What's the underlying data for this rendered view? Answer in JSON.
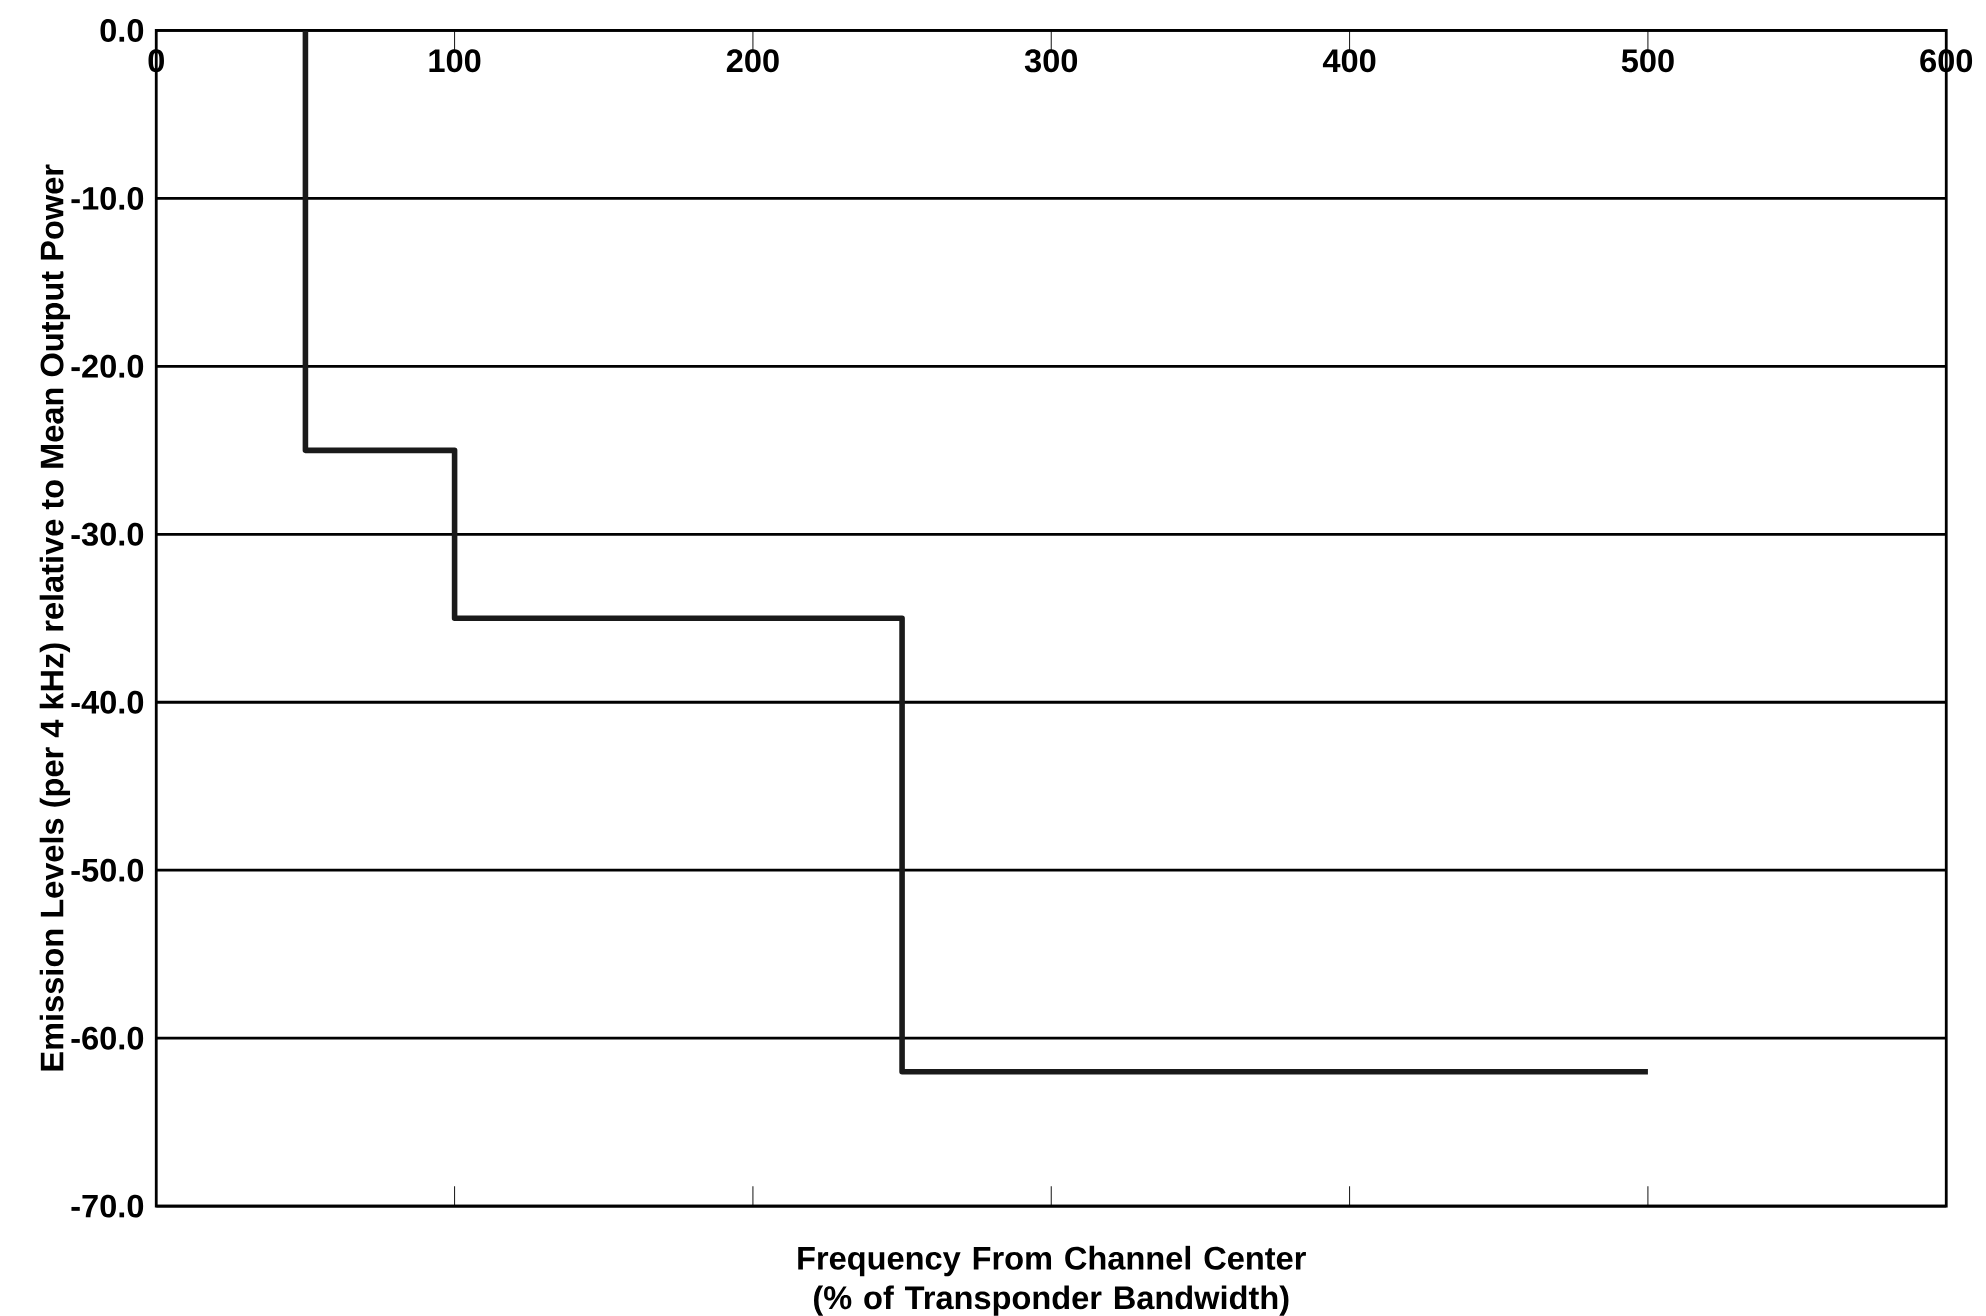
{
  "chart_data": {
    "type": "line",
    "xlabel": "Frequency From Channel Center (% of Transponder Bandwidth)",
    "ylabel": "Emission Levels (per 4 kHz) relative to Mean Output Power",
    "x": [
      50,
      50,
      100,
      100,
      250,
      250,
      500
    ],
    "values": [
      0,
      -25,
      -25,
      -35,
      -35,
      -62,
      -62
    ],
    "color": "#1a1a1a",
    "xlim": [
      0,
      600
    ],
    "ylim": [
      -70,
      0
    ],
    "xticks": [
      0,
      100,
      200,
      300,
      400,
      500,
      600
    ],
    "yticks": [
      {
        "value": -70,
        "label": "-70.0"
      },
      {
        "value": -60,
        "label": "-60.0"
      },
      {
        "value": -50,
        "label": "-50.0"
      },
      {
        "value": -40,
        "label": "-40.0"
      },
      {
        "value": -30,
        "label": "-30.0"
      },
      {
        "value": -20,
        "label": "-20.0"
      },
      {
        "value": -10,
        "label": "-10.0"
      },
      {
        "value": 0,
        "label": "0.0"
      }
    ],
    "grid": "y",
    "marker": "none"
  }
}
